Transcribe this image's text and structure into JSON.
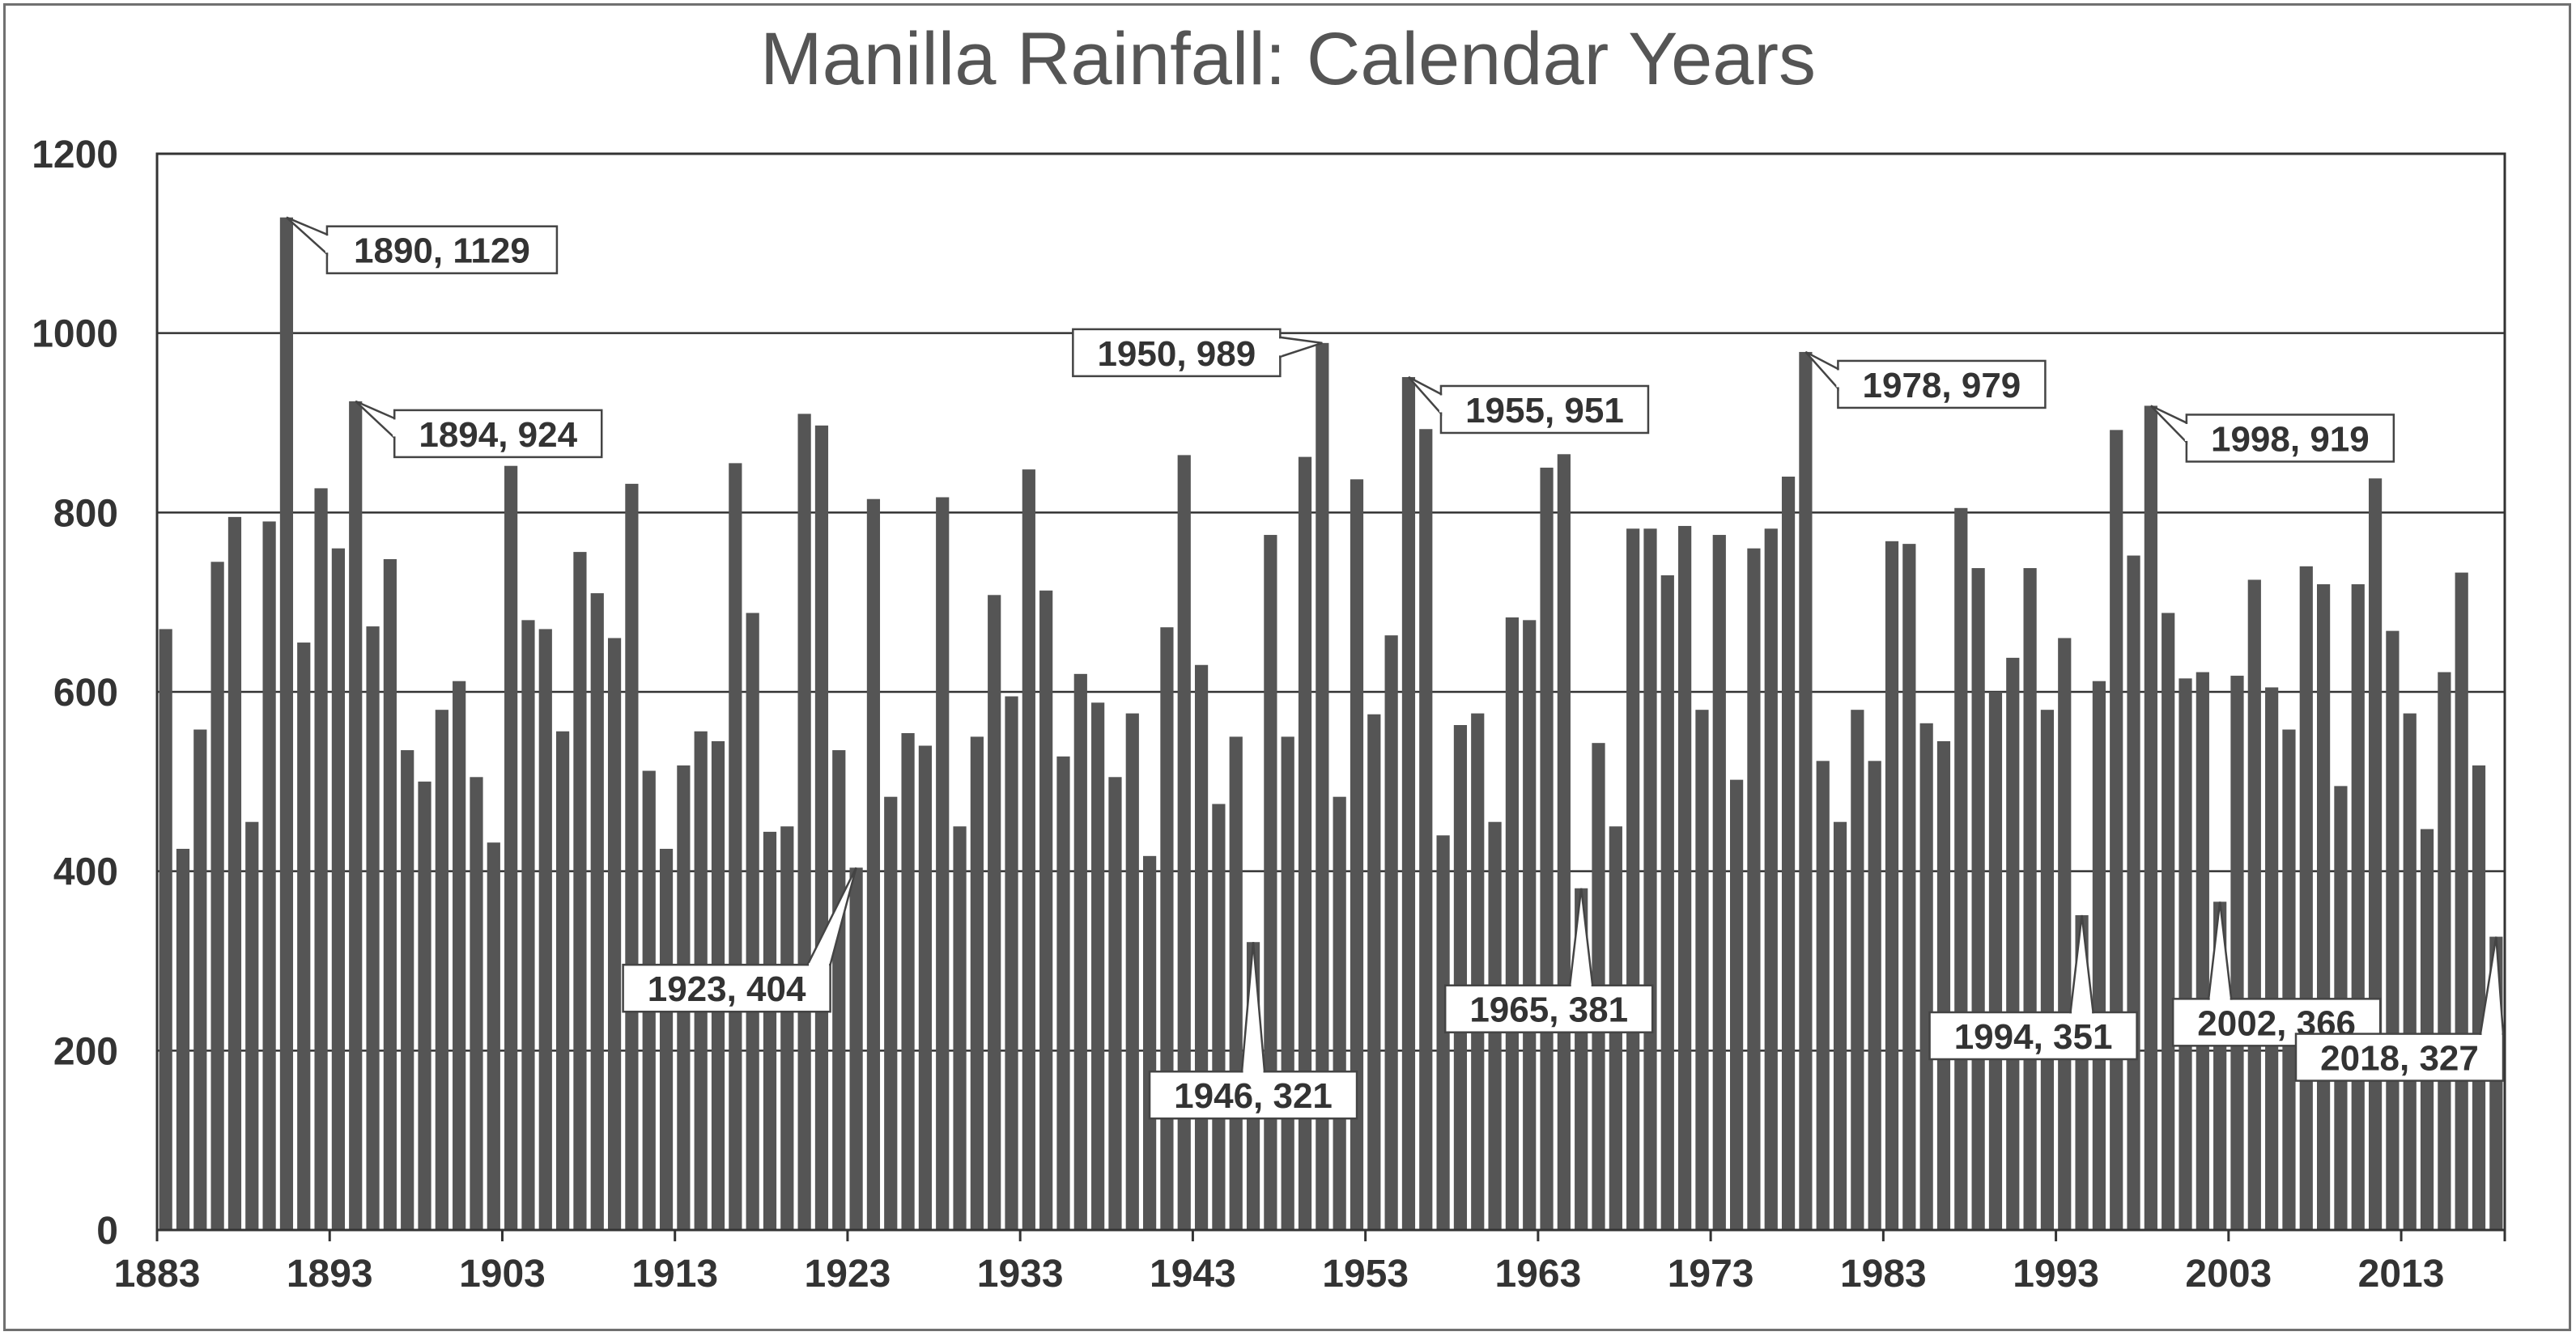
{
  "chart_data": {
    "type": "bar",
    "title": "Manilla Rainfall: Calendar Years",
    "xlabel": "",
    "ylabel": "",
    "ylim": [
      0,
      1200
    ],
    "yticks": [
      0,
      200,
      400,
      600,
      800,
      1000,
      1200
    ],
    "xtick_labels": [
      "1883",
      "1893",
      "1903",
      "1913",
      "1923",
      "1933",
      "1943",
      "1953",
      "1963",
      "1973",
      "1983",
      "1993",
      "2003",
      "2013"
    ],
    "grid": "horizontal",
    "bar_color": "#555555",
    "years": [
      1883,
      1884,
      1885,
      1886,
      1887,
      1888,
      1889,
      1890,
      1891,
      1892,
      1893,
      1894,
      1895,
      1896,
      1897,
      1898,
      1899,
      1900,
      1901,
      1902,
      1903,
      1904,
      1905,
      1906,
      1907,
      1908,
      1909,
      1910,
      1911,
      1912,
      1913,
      1914,
      1915,
      1916,
      1917,
      1918,
      1919,
      1920,
      1921,
      1922,
      1923,
      1924,
      1925,
      1926,
      1927,
      1928,
      1929,
      1930,
      1931,
      1932,
      1933,
      1934,
      1935,
      1936,
      1937,
      1938,
      1939,
      1940,
      1941,
      1942,
      1943,
      1944,
      1945,
      1946,
      1947,
      1948,
      1949,
      1950,
      1951,
      1952,
      1953,
      1954,
      1955,
      1956,
      1957,
      1958,
      1959,
      1960,
      1961,
      1962,
      1963,
      1964,
      1965,
      1966,
      1967,
      1968,
      1969,
      1970,
      1971,
      1972,
      1973,
      1974,
      1975,
      1976,
      1977,
      1978,
      1979,
      1980,
      1981,
      1982,
      1983,
      1984,
      1985,
      1986,
      1987,
      1988,
      1989,
      1990,
      1991,
      1992,
      1993,
      1994,
      1995,
      1996,
      1997,
      1998,
      1999,
      2000,
      2001,
      2002,
      2003,
      2004,
      2005,
      2006,
      2007,
      2008,
      2009,
      2010,
      2011,
      2012,
      2013,
      2014,
      2015,
      2016,
      2017,
      2018
    ],
    "values": [
      670,
      425,
      558,
      745,
      795,
      455,
      790,
      1129,
      655,
      827,
      760,
      924,
      673,
      748,
      535,
      500,
      580,
      612,
      505,
      432,
      852,
      680,
      670,
      556,
      756,
      710,
      660,
      832,
      512,
      425,
      518,
      556,
      545,
      855,
      688,
      444,
      450,
      910,
      897,
      535,
      404,
      815,
      483,
      554,
      540,
      817,
      450,
      550,
      708,
      595,
      848,
      713,
      528,
      620,
      588,
      505,
      576,
      417,
      672,
      864,
      630,
      475,
      550,
      321,
      775,
      550,
      862,
      989,
      483,
      837,
      575,
      663,
      951,
      893,
      440,
      563,
      576,
      455,
      683,
      680,
      850,
      865,
      381,
      543,
      450,
      782,
      782,
      730,
      785,
      580,
      775,
      502,
      760,
      782,
      840,
      979,
      523,
      455,
      580,
      523,
      768,
      765,
      565,
      545,
      805,
      738,
      600,
      638,
      738,
      580,
      660,
      351,
      612,
      892,
      752,
      919,
      688,
      615,
      622,
      366,
      618,
      725,
      605,
      558,
      740,
      720,
      495,
      720,
      838,
      668,
      576,
      447,
      622,
      733,
      518,
      327
    ],
    "annotations": [
      {
        "label": "1890, 1129",
        "year": 1890,
        "value": 1129
      },
      {
        "label": "1894, 924",
        "year": 1894,
        "value": 924
      },
      {
        "label": "1923, 404",
        "year": 1923,
        "value": 404
      },
      {
        "label": "1946, 321",
        "year": 1946,
        "value": 321
      },
      {
        "label": "1950, 989",
        "year": 1950,
        "value": 989
      },
      {
        "label": "1955, 951",
        "year": 1955,
        "value": 951
      },
      {
        "label": "1965, 381",
        "year": 1965,
        "value": 381
      },
      {
        "label": "1978, 979",
        "year": 1978,
        "value": 979
      },
      {
        "label": "1994, 351",
        "year": 1994,
        "value": 351
      },
      {
        "label": "1998, 919",
        "year": 1998,
        "value": 919
      },
      {
        "label": "2002, 366",
        "year": 2002,
        "value": 366
      },
      {
        "label": "2018, 327",
        "year": 2018,
        "value": 327
      }
    ]
  }
}
